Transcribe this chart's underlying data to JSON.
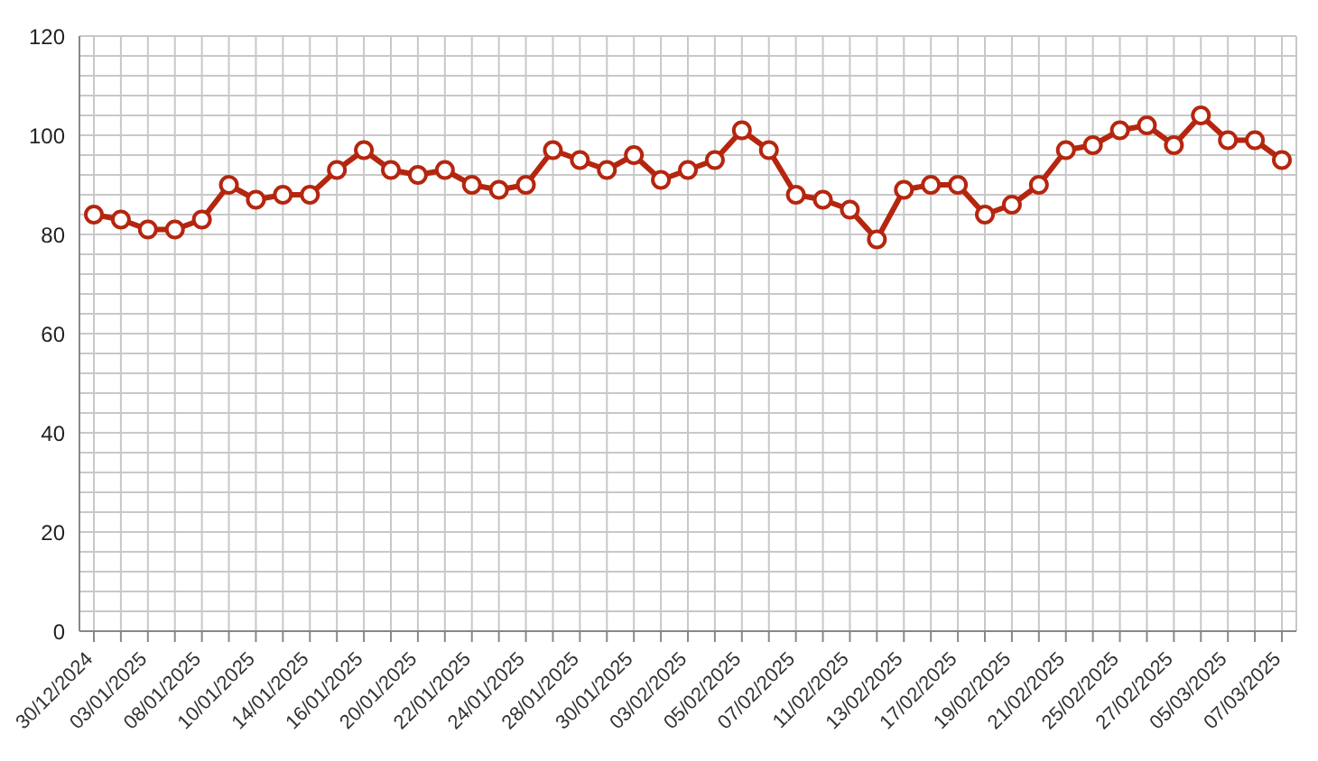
{
  "chart_data": {
    "type": "line",
    "categories": [
      "30/12/2024",
      null,
      "03/01/2025",
      null,
      "08/01/2025",
      null,
      "10/01/2025",
      null,
      "14/01/2025",
      null,
      "16/01/2025",
      null,
      "20/01/2025",
      null,
      "22/01/2025",
      null,
      "24/01/2025",
      null,
      "28/01/2025",
      null,
      "30/01/2025",
      null,
      "03/02/2025",
      null,
      "05/02/2025",
      null,
      "07/02/2025",
      null,
      "11/02/2025",
      null,
      "13/02/2025",
      null,
      "17/02/2025",
      null,
      "19/02/2025",
      null,
      "21/02/2025",
      null,
      "25/02/2025",
      null,
      "27/02/2025",
      null,
      "05/03/2025",
      null,
      "07/03/2025"
    ],
    "series": [
      {
        "color": "#b5260f",
        "values": [
          84,
          83,
          81,
          81,
          83,
          90,
          87,
          88,
          88,
          93,
          97,
          93,
          92,
          93,
          90,
          89,
          90,
          97,
          95,
          93,
          96,
          91,
          93,
          95,
          101,
          97,
          88,
          87,
          85,
          79,
          89,
          90,
          90,
          84,
          86,
          90,
          97,
          98,
          101,
          102,
          98,
          104,
          99,
          99,
          95
        ]
      }
    ],
    "ylim": [
      0,
      120
    ],
    "yticks": [
      0,
      {
        "value": 4,
        "label": null
      },
      {
        "value": 8,
        "label": null
      },
      {
        "value": 12,
        "label": null
      },
      {
        "value": 16,
        "label": null
      },
      20,
      {
        "value": 24,
        "label": null
      },
      {
        "value": 28,
        "label": null
      },
      {
        "value": 32,
        "label": null
      },
      {
        "value": 36,
        "label": null
      },
      40,
      {
        "value": 44,
        "label": null
      },
      {
        "value": 48,
        "label": null
      },
      {
        "value": 52,
        "label": null
      },
      {
        "value": 56,
        "label": null
      },
      60,
      {
        "value": 64,
        "label": null
      },
      {
        "value": 68,
        "label": null
      },
      {
        "value": 72,
        "label": null
      },
      {
        "value": 76,
        "label": null
      },
      80,
      {
        "value": 84,
        "label": null
      },
      {
        "value": 88,
        "label": null
      },
      {
        "value": 92,
        "label": null
      },
      {
        "value": 96,
        "label": null
      },
      100,
      {
        "value": 104,
        "label": null
      },
      {
        "value": 108,
        "label": null
      },
      {
        "value": 112,
        "label": null
      },
      {
        "value": 116,
        "label": null
      },
      120
    ],
    "grid": true,
    "marker": "circle",
    "line_style": "solid"
  }
}
